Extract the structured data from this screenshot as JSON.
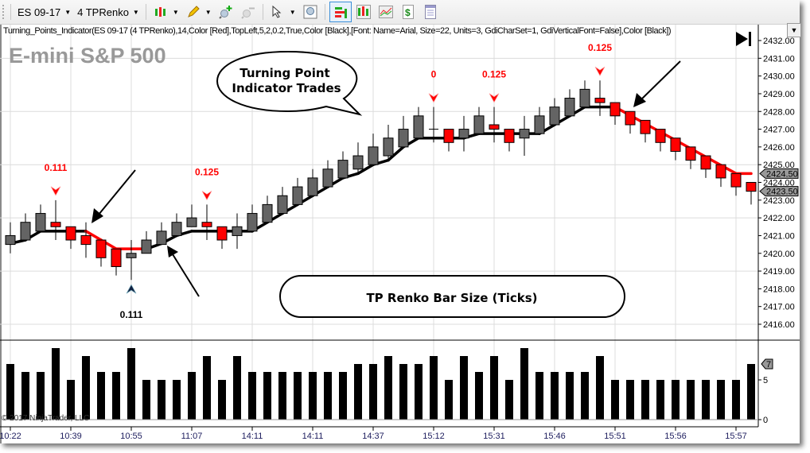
{
  "toolbar": {
    "instrument": "ES 09-17",
    "bar_type": "4 TPRenko",
    "icons": [
      "chart-style-icon",
      "pencil-icon",
      "zoom-in-icon",
      "zoom-out-icon",
      "pointer-icon",
      "zoom-box-icon",
      "indicators-icon",
      "strategies-icon",
      "chart-trader-icon",
      "dollar-icon",
      "properties-icon"
    ]
  },
  "indicator_text": "Turning_Points_Indicator(ES 09-17 (4 TPRenko),14,Color [Red],TopLeft,5,2,0.2,True,Color [Black],[Font: Name=Arial, Size=22, Units=3, GdiCharSet=1, GdiVerticalFont=False],Color [Black])",
  "chart_title": "E-mini S&P 500",
  "copyright": "© 2017 NinjaTrader, LLC",
  "annotations": {
    "callout": "Turning Point Indicator Trades",
    "callout_line1": "Turning Point",
    "callout_line2": "Indicator Trades",
    "box": "TP Renko Bar Size (Ticks)"
  },
  "chart_data": {
    "type": "candlestick",
    "price_axis": {
      "ticks": [
        "2432.00",
        "2431.00",
        "2430.00",
        "2429.00",
        "2428.00",
        "2427.00",
        "2426.00",
        "2425.00",
        "2424.00",
        "2423.00",
        "2422.00",
        "2421.00",
        "2420.00",
        "2419.00",
        "2418.00",
        "2417.00",
        "2416.00"
      ],
      "range": [
        2416,
        2432
      ],
      "grid_every": 3
    },
    "price_tags": [
      {
        "value": "2424.50",
        "role": "indicator"
      },
      {
        "value": "2423.50",
        "role": "last"
      }
    ],
    "volume_axis": {
      "ticks": [
        "5",
        "0"
      ],
      "tag": "7"
    },
    "x_labels": [
      {
        "bar": 1,
        "label": "10:22"
      },
      {
        "bar": 5,
        "label": "10:39"
      },
      {
        "bar": 9,
        "label": "10:55"
      },
      {
        "bar": 13,
        "label": "11:07"
      },
      {
        "bar": 17,
        "label": "14:11"
      },
      {
        "bar": 21,
        "label": "14:11"
      },
      {
        "bar": 25,
        "label": "14:37"
      },
      {
        "bar": 29,
        "label": "15:12"
      },
      {
        "bar": 33,
        "label": "15:31"
      },
      {
        "bar": 37,
        "label": "15:46"
      },
      {
        "bar": 41,
        "label": "15:51"
      },
      {
        "bar": 45,
        "label": "15:56"
      },
      {
        "bar": 49,
        "label": "15:57"
      }
    ],
    "ohlc": [
      [
        2420.5,
        2421.75,
        2420.0,
        2421.0
      ],
      [
        2420.75,
        2422.25,
        2420.75,
        2421.75
      ],
      [
        2421.25,
        2422.75,
        2421.25,
        2422.25
      ],
      [
        2421.75,
        2423.0,
        2420.75,
        2421.5
      ],
      [
        2421.5,
        2421.5,
        2420.25,
        2420.75
      ],
      [
        2421.0,
        2421.75,
        2419.75,
        2420.5
      ],
      [
        2420.75,
        2420.75,
        2419.25,
        2419.75
      ],
      [
        2420.25,
        2420.25,
        2418.75,
        2419.25
      ],
      [
        2419.75,
        2420.75,
        2418.5,
        2420.0
      ],
      [
        2420.0,
        2421.25,
        2420.0,
        2420.75
      ],
      [
        2420.5,
        2421.75,
        2420.5,
        2421.25
      ],
      [
        2421.0,
        2422.25,
        2421.0,
        2421.75
      ],
      [
        2421.5,
        2422.75,
        2421.5,
        2422.0
      ],
      [
        2421.75,
        2422.75,
        2420.75,
        2421.5
      ],
      [
        2421.5,
        2421.5,
        2420.25,
        2420.75
      ],
      [
        2421.0,
        2422.25,
        2420.25,
        2421.5
      ],
      [
        2421.25,
        2422.75,
        2421.25,
        2422.25
      ],
      [
        2421.75,
        2423.25,
        2421.75,
        2422.75
      ],
      [
        2422.25,
        2423.75,
        2422.25,
        2423.25
      ],
      [
        2422.75,
        2424.25,
        2422.75,
        2423.75
      ],
      [
        2423.25,
        2424.75,
        2423.25,
        2424.25
      ],
      [
        2423.75,
        2425.25,
        2423.75,
        2424.75
      ],
      [
        2424.25,
        2425.75,
        2424.25,
        2425.25
      ],
      [
        2424.75,
        2426.25,
        2424.5,
        2425.5
      ],
      [
        2425.0,
        2426.75,
        2425.0,
        2426.0
      ],
      [
        2425.5,
        2427.25,
        2425.25,
        2426.5
      ],
      [
        2426.0,
        2427.75,
        2426.0,
        2427.0
      ],
      [
        2426.5,
        2428.25,
        2426.5,
        2427.75
      ],
      [
        2427.0,
        2428.25,
        2426.25,
        2427.0
      ],
      [
        2427.0,
        2427.0,
        2425.75,
        2426.25
      ],
      [
        2426.5,
        2427.75,
        2425.75,
        2427.0
      ],
      [
        2426.75,
        2428.25,
        2426.75,
        2427.75
      ],
      [
        2427.25,
        2428.25,
        2426.25,
        2427.0
      ],
      [
        2427.0,
        2427.0,
        2425.75,
        2426.25
      ],
      [
        2426.5,
        2427.75,
        2425.5,
        2427.0
      ],
      [
        2426.75,
        2428.25,
        2426.75,
        2427.75
      ],
      [
        2427.25,
        2428.75,
        2427.25,
        2428.25
      ],
      [
        2427.75,
        2429.25,
        2427.75,
        2428.75
      ],
      [
        2428.25,
        2429.75,
        2428.25,
        2429.25
      ],
      [
        2428.75,
        2429.75,
        2427.75,
        2428.5
      ],
      [
        2428.5,
        2428.5,
        2427.25,
        2427.75
      ],
      [
        2428.0,
        2428.0,
        2426.75,
        2427.25
      ],
      [
        2427.5,
        2427.5,
        2426.25,
        2426.75
      ],
      [
        2427.0,
        2427.0,
        2425.75,
        2426.25
      ],
      [
        2426.5,
        2426.5,
        2425.25,
        2425.75
      ],
      [
        2426.0,
        2426.0,
        2424.75,
        2425.25
      ],
      [
        2425.5,
        2425.5,
        2424.25,
        2424.75
      ],
      [
        2425.0,
        2425.0,
        2423.75,
        2424.25
      ],
      [
        2424.5,
        2424.5,
        2423.25,
        2423.75
      ],
      [
        2424.0,
        2424.0,
        2422.75,
        2423.5
      ]
    ],
    "volume": [
      7,
      6,
      6,
      9,
      5,
      8,
      6,
      6,
      9,
      5,
      5,
      5,
      6,
      8,
      5,
      8,
      6,
      6,
      6,
      6,
      6,
      6,
      6,
      7,
      7,
      8,
      7,
      7,
      8,
      5,
      8,
      6,
      8,
      5,
      9,
      6,
      6,
      6,
      6,
      8,
      5,
      5,
      5,
      5,
      5,
      5,
      5,
      5,
      5,
      7
    ],
    "volume_range": [
      0,
      10
    ],
    "turning_line": [
      2420.55,
      2420.75,
      2421.25,
      2421.25,
      2421.25,
      2421.25,
      2420.75,
      2420.25,
      2420.25,
      2420.25,
      2420.55,
      2421.0,
      2421.25,
      2421.25,
      2421.25,
      2421.25,
      2421.25,
      2421.75,
      2422.25,
      2422.75,
      2423.25,
      2423.75,
      2424.25,
      2424.5,
      2425.0,
      2425.25,
      2426.0,
      2426.5,
      2426.5,
      2426.5,
      2426.5,
      2426.75,
      2426.75,
      2426.75,
      2426.75,
      2426.75,
      2427.25,
      2427.75,
      2428.25,
      2428.25,
      2428.25,
      2427.78,
      2427.31,
      2426.84,
      2426.38,
      2425.91,
      2425.44,
      2424.97,
      2424.5,
      2424.5
    ],
    "turning_line_down_bars": [
      7,
      8,
      9,
      10,
      42,
      43,
      44,
      45,
      46,
      47,
      48,
      49,
      50
    ],
    "signals": [
      {
        "bar": 4,
        "type": "sell",
        "label": "0.111"
      },
      {
        "bar": 9,
        "type": "buy",
        "label": "0.111"
      },
      {
        "bar": 14,
        "type": "sell",
        "label": "0.125"
      },
      {
        "bar": 29,
        "type": "sell",
        "label": "0"
      },
      {
        "bar": 33,
        "type": "sell",
        "label": "0.125"
      },
      {
        "bar": 40,
        "type": "sell",
        "label": "0.125"
      }
    ],
    "colors": {
      "up": "#646464",
      "down": "#ff0000",
      "line_up": "#000000",
      "line_down": "#ff0000",
      "sell_label": "#ff0000",
      "buy_label": "#000000",
      "volume": "#000000",
      "grid": "#dcdcdc"
    }
  }
}
